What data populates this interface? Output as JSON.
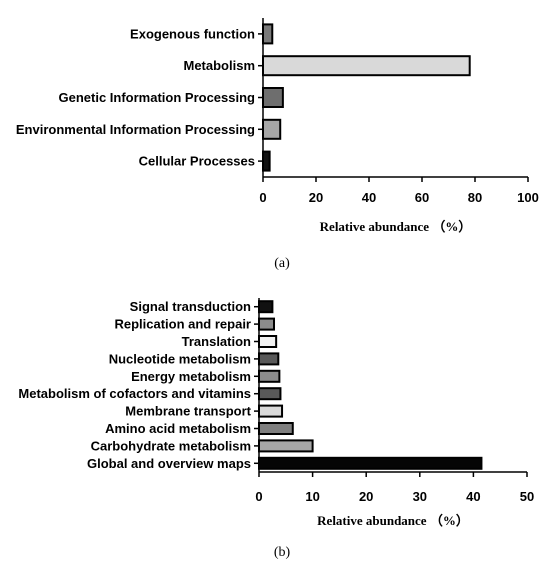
{
  "chart_data": [
    {
      "type": "bar",
      "orientation": "horizontal",
      "panel_label": "(a)",
      "categories": [
        "Exogenous function",
        "Metabolism",
        "Genetic Information Processing",
        "Environmental Information Processing",
        "Cellular Processes"
      ],
      "values": [
        3.5,
        78,
        7.5,
        6.5,
        2.5
      ],
      "colors": [
        "#7a7a7a",
        "#d9d9d9",
        "#6e6e6e",
        "#a6a6a6",
        "#111111"
      ],
      "xlabel": "Relative abundance （%）",
      "xlim": [
        0,
        100
      ],
      "xticks": [
        0,
        20,
        40,
        60,
        80,
        100
      ],
      "grid": false
    },
    {
      "type": "bar",
      "orientation": "horizontal",
      "panel_label": "(b)",
      "categories": [
        "Signal transduction",
        "Replication and repair",
        "Translation",
        "Nucleotide metabolism",
        "Energy metabolism",
        "Metabolism of cofactors and vitamins",
        "Membrane transport",
        "Amino acid metabolism",
        "Carbohydrate metabolism",
        "Global and overview maps"
      ],
      "values": [
        2.5,
        2.8,
        3.2,
        3.6,
        3.8,
        4.0,
        4.3,
        6.3,
        10.0,
        41.5
      ],
      "colors": [
        "#111111",
        "#8c8c8c",
        "#f2f2f2",
        "#595959",
        "#8c8c8c",
        "#595959",
        "#d9d9d9",
        "#7f7f7f",
        "#a6a6a6",
        "#050505"
      ],
      "xlabel": "Relative abundance （%）",
      "xlim": [
        0,
        50
      ],
      "xticks": [
        0,
        10,
        20,
        30,
        40,
        50
      ],
      "grid": false
    }
  ]
}
